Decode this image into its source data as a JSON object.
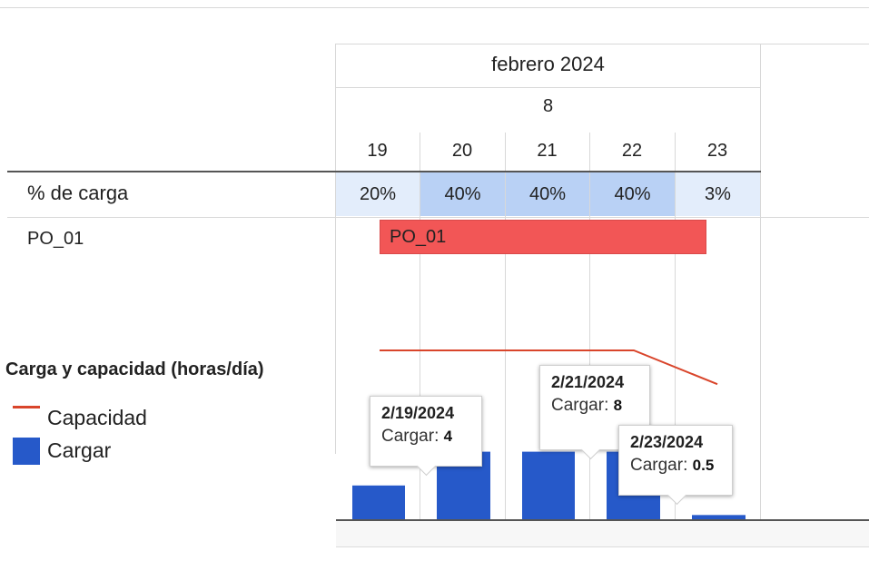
{
  "header": {
    "month": "febrero 2024",
    "week": "8",
    "days": [
      "19",
      "20",
      "21",
      "22",
      "23"
    ]
  },
  "rows": {
    "load_label": "% de carga",
    "load_values": [
      "20%",
      "40%",
      "40%",
      "40%",
      "3%"
    ],
    "load_colors": [
      "#e3edfb",
      "#b9d1f5",
      "#b9d1f5",
      "#b9d1f5",
      "#e3edfb"
    ],
    "task_label": "PO_01",
    "task_bar_label": "PO_01",
    "task_bar_color": "#f25656"
  },
  "legend": {
    "title": "Carga y capacidad (horas/día)",
    "items": [
      {
        "label": "Capacidad",
        "color": "#d9452b",
        "shape": "line"
      },
      {
        "label": "Cargar",
        "color": "#2659c9",
        "shape": "square"
      }
    ]
  },
  "tooltips": [
    {
      "date": "2/19/2024",
      "label": "Cargar:",
      "value": "4"
    },
    {
      "date": "2/21/2024",
      "label": "Cargar:",
      "value": "8"
    },
    {
      "date": "2/23/2024",
      "label": "Cargar:",
      "value": "0.5"
    }
  ],
  "chart_data": {
    "type": "bar",
    "title": "Carga y capacidad (horas/día)",
    "categories": [
      "2/19/2024",
      "2/20/2024",
      "2/21/2024",
      "2/22/2024",
      "2/23/2024"
    ],
    "series": [
      {
        "name": "Cargar",
        "type": "bar",
        "values": [
          4,
          8,
          8,
          8,
          0.5
        ],
        "color": "#2659c9"
      },
      {
        "name": "Capacidad",
        "type": "line",
        "values": [
          20,
          20,
          20,
          20,
          16
        ],
        "color": "#d9452b"
      }
    ],
    "ylim": [
      0,
      20
    ],
    "legend": "left"
  }
}
